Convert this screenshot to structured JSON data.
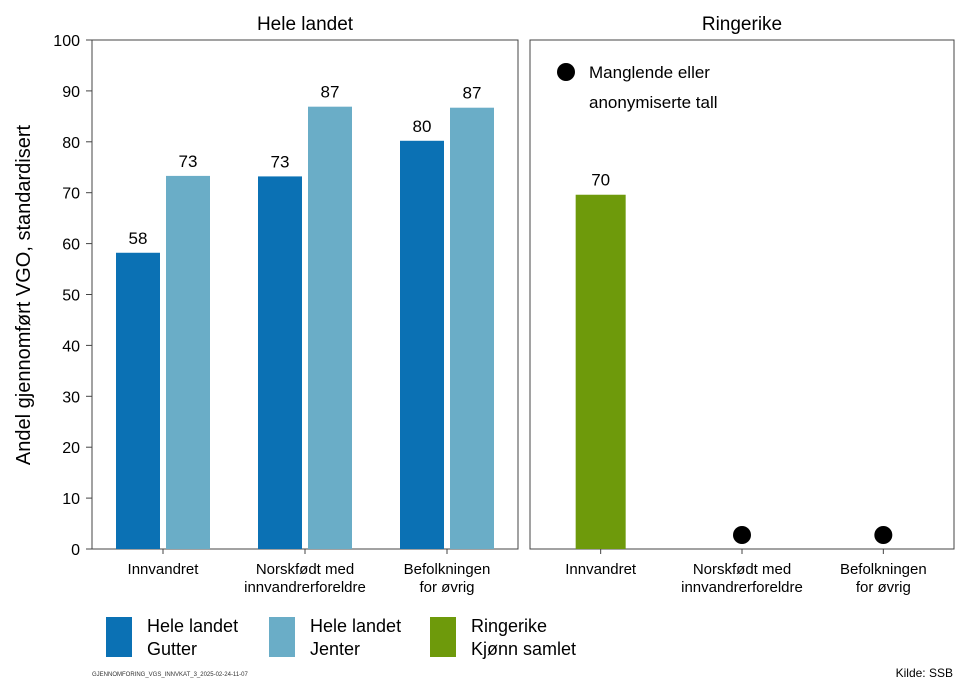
{
  "chart_data": [
    {
      "type": "bar",
      "title": "Hele landet",
      "ylabel": "Andel gjennomført VGO, standardisert",
      "ylim": [
        0,
        100
      ],
      "yticks": [
        0,
        10,
        20,
        30,
        40,
        50,
        60,
        70,
        80,
        90,
        100
      ],
      "categories": [
        [
          "Innvandret"
        ],
        [
          "Norskfødt med",
          "innvandrerforeldre"
        ],
        [
          "Befolkningen",
          "for øvrig"
        ]
      ],
      "series": [
        {
          "name": "Hele landet Gutter",
          "color": "#0b71b4",
          "values": [
            58.2,
            73.2,
            80.2
          ]
        },
        {
          "name": "Hele landet Jenter",
          "color": "#6aadc7",
          "values": [
            73.3,
            86.9,
            86.7
          ]
        }
      ],
      "data_labels": [
        [
          "58",
          "73",
          "80"
        ],
        [
          "73",
          "87",
          "87"
        ]
      ],
      "grid": false
    },
    {
      "type": "bar",
      "title": "Ringerike",
      "ylim": [
        0,
        100
      ],
      "categories": [
        [
          "Innvandret"
        ],
        [
          "Norskfødt med",
          "innvandrerforeldre"
        ],
        [
          "Befolkningen",
          "for øvrig"
        ]
      ],
      "series": [
        {
          "name": "Ringerike Kjønn samlet",
          "color": "#6e9a0b",
          "values": [
            69.6,
            null,
            null
          ]
        }
      ],
      "data_labels": [
        [
          "70",
          "",
          ""
        ]
      ],
      "missing_marker": {
        "label_line1": "Manglende eller",
        "label_line2": "anonymiserte tall",
        "color": "#000000",
        "missing_index": [
          1,
          2
        ]
      },
      "grid": false
    }
  ],
  "legend": [
    {
      "line1": "Hele landet",
      "line2": "Gutter",
      "color": "#0b71b4"
    },
    {
      "line1": "Hele landet",
      "line2": "Jenter",
      "color": "#6aadc7"
    },
    {
      "line1": "Ringerike",
      "line2": "Kjønn samlet",
      "color": "#6e9a0b"
    }
  ],
  "footer_id": "GJENNOMFORING_VGS_INNVKAT_3_2025-02-24-11-07",
  "source": "Kilde: SSB"
}
